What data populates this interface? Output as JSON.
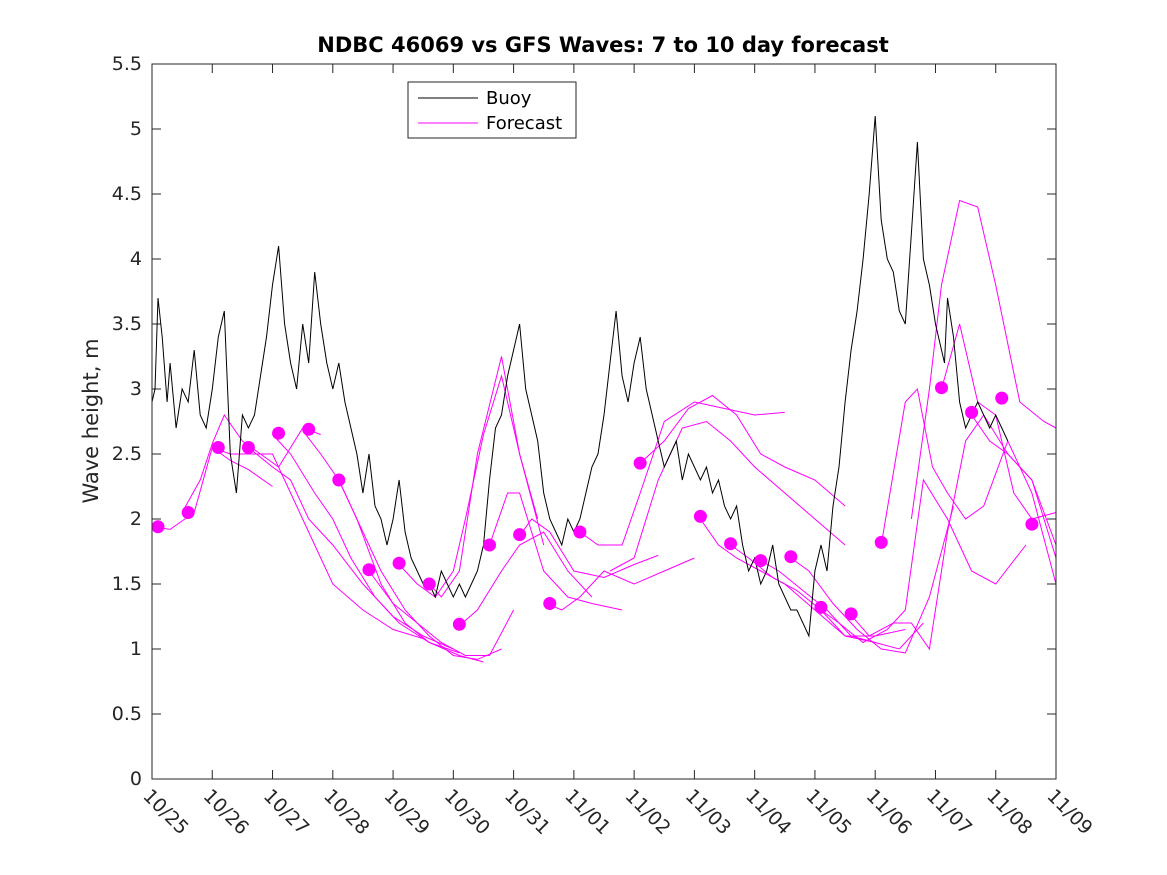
{
  "chart_data": {
    "type": "line",
    "title": "NDBC 46069 vs GFS Waves: 7 to 10 day forecast",
    "xlabel": "",
    "ylabel": "Wave height, m",
    "xlim": [
      0,
      15
    ],
    "ylim": [
      0,
      5.5
    ],
    "yticks": [
      0,
      0.5,
      1,
      1.5,
      2,
      2.5,
      3,
      3.5,
      4,
      4.5,
      5,
      5.5
    ],
    "ytick_labels": [
      "0",
      "0.5",
      "1",
      "1.5",
      "2",
      "2.5",
      "3",
      "3.5",
      "4",
      "4.5",
      "5",
      "5.5"
    ],
    "xtick_labels": [
      "10/25",
      "10/26",
      "10/27",
      "10/28",
      "10/29",
      "10/30",
      "10/31",
      "11/01",
      "11/02",
      "11/03",
      "11/04",
      "11/05",
      "11/06",
      "11/07",
      "11/08",
      "11/09"
    ],
    "x_units": "days since 10/25 00:00",
    "legend": {
      "placement": "top-left",
      "entries": [
        "Buoy",
        "Forecast"
      ]
    },
    "colors": {
      "buoy": "#000000",
      "forecast": "#ff00ff",
      "axis": "#262626"
    },
    "buoy": {
      "name": "Buoy",
      "x": [
        0.0,
        0.05,
        0.1,
        0.17,
        0.25,
        0.3,
        0.4,
        0.5,
        0.6,
        0.7,
        0.8,
        0.9,
        1.0,
        1.1,
        1.2,
        1.3,
        1.4,
        1.5,
        1.6,
        1.7,
        1.8,
        1.9,
        2.0,
        2.1,
        2.2,
        2.3,
        2.4,
        2.5,
        2.6,
        2.7,
        2.8,
        2.9,
        3.0,
        3.1,
        3.2,
        3.3,
        3.4,
        3.5,
        3.6,
        3.7,
        3.8,
        3.9,
        4.0,
        4.1,
        4.2,
        4.3,
        4.4,
        4.5,
        4.6,
        4.7,
        4.8,
        4.9,
        5.0,
        5.1,
        5.2,
        5.3,
        5.4,
        5.5,
        5.6,
        5.7,
        5.8,
        5.9,
        6.0,
        6.1,
        6.2,
        6.3,
        6.4,
        6.5,
        6.6,
        6.7,
        6.8,
        6.9,
        7.0,
        7.1,
        7.2,
        7.3,
        7.4,
        7.5,
        7.6,
        7.7,
        7.8,
        7.9,
        8.0,
        8.1,
        8.2,
        8.3,
        8.4,
        8.5,
        8.6,
        8.7,
        8.8,
        8.9,
        9.0,
        9.1,
        9.2,
        9.3,
        9.4,
        9.5,
        9.6,
        9.7,
        9.8,
        9.9,
        10.0,
        10.1,
        10.2,
        10.3,
        10.4,
        10.5,
        10.6,
        10.7,
        10.8,
        10.9,
        11.0,
        11.1,
        11.2,
        11.3,
        11.4,
        11.5,
        11.6,
        11.7,
        11.8,
        11.9,
        12.0,
        12.1,
        12.2,
        12.3,
        12.4,
        12.5,
        12.6,
        12.7,
        12.8,
        12.9,
        13.0,
        13.1,
        13.15,
        13.2,
        13.3,
        13.4,
        13.5,
        13.6,
        13.7,
        13.8,
        13.9,
        14.0,
        14.1,
        14.2
      ],
      "values": [
        2.9,
        3.0,
        3.7,
        3.4,
        2.9,
        3.2,
        2.7,
        3.0,
        2.9,
        3.3,
        2.8,
        2.7,
        3.0,
        3.4,
        3.6,
        2.5,
        2.2,
        2.8,
        2.7,
        2.8,
        3.1,
        3.4,
        3.8,
        4.1,
        3.5,
        3.2,
        3.0,
        3.5,
        3.2,
        3.9,
        3.5,
        3.2,
        3.0,
        3.2,
        2.9,
        2.7,
        2.5,
        2.2,
        2.5,
        2.1,
        2.0,
        1.8,
        2.0,
        2.3,
        1.9,
        1.7,
        1.6,
        1.5,
        1.5,
        1.4,
        1.6,
        1.5,
        1.4,
        1.5,
        1.4,
        1.5,
        1.6,
        1.8,
        2.3,
        2.7,
        2.8,
        3.1,
        3.3,
        3.5,
        3.0,
        2.8,
        2.6,
        2.2,
        2.0,
        1.9,
        1.8,
        2.0,
        1.9,
        2.0,
        2.2,
        2.4,
        2.5,
        2.8,
        3.2,
        3.6,
        3.1,
        2.9,
        3.2,
        3.4,
        3.0,
        2.8,
        2.6,
        2.4,
        2.5,
        2.6,
        2.3,
        2.5,
        2.4,
        2.3,
        2.4,
        2.2,
        2.3,
        2.1,
        2.0,
        2.1,
        1.8,
        1.6,
        1.7,
        1.5,
        1.6,
        1.8,
        1.5,
        1.4,
        1.3,
        1.3,
        1.2,
        1.1,
        1.6,
        1.8,
        1.6,
        2.1,
        2.4,
        2.9,
        3.3,
        3.6,
        4.0,
        4.5,
        5.1,
        4.3,
        4.0,
        3.9,
        3.6,
        3.5,
        4.2,
        4.9,
        4.0,
        3.8,
        3.5,
        3.3,
        3.2,
        3.7,
        3.4,
        2.9,
        2.7,
        2.8,
        2.9,
        2.8,
        2.7,
        2.8,
        2.7,
        2.6
      ]
    },
    "forecast_runs": [
      {
        "x": [
          0.0,
          0.3,
          0.7,
          1.0,
          1.3,
          1.6,
          2.0
        ],
        "values": [
          1.94,
          1.92,
          2.05,
          2.55,
          2.45,
          2.38,
          2.25
        ]
      },
      {
        "x": [
          0.5,
          0.8,
          1.0,
          1.2,
          1.5,
          1.8,
          2.1,
          2.5,
          2.8
        ],
        "values": [
          2.05,
          2.3,
          2.58,
          2.8,
          2.6,
          2.5,
          2.4,
          2.7,
          2.65
        ]
      },
      {
        "x": [
          1.0,
          1.3,
          1.6,
          2.0,
          2.3,
          2.7,
          3.0,
          3.5,
          4.0,
          4.5
        ],
        "values": [
          2.55,
          2.5,
          2.5,
          2.5,
          2.2,
          1.8,
          1.5,
          1.3,
          1.15,
          1.08
        ]
      },
      {
        "x": [
          1.6,
          2.0,
          2.3,
          2.6,
          3.0,
          3.5,
          4.0,
          4.5,
          5.0
        ],
        "values": [
          2.55,
          2.4,
          2.3,
          2.0,
          1.8,
          1.5,
          1.25,
          1.1,
          1.0
        ]
      },
      {
        "x": [
          2.0,
          2.3,
          2.7,
          3.0,
          3.3,
          3.7,
          4.1,
          4.6,
          5.1
        ],
        "values": [
          2.65,
          2.5,
          2.2,
          2.0,
          1.7,
          1.4,
          1.2,
          1.05,
          0.97
        ]
      },
      {
        "x": [
          2.5,
          2.8,
          3.1,
          3.4,
          3.8,
          4.2,
          4.6,
          5.1,
          5.5
        ],
        "values": [
          2.68,
          2.5,
          2.3,
          2.0,
          1.5,
          1.2,
          1.05,
          0.95,
          0.9
        ]
      },
      {
        "x": [
          3.1,
          3.4,
          3.8,
          4.2,
          4.6,
          5.0,
          5.4,
          5.8
        ],
        "values": [
          2.3,
          2.0,
          1.6,
          1.3,
          1.1,
          0.95,
          0.92,
          1.0
        ]
      },
      {
        "x": [
          3.6,
          4.0,
          4.4,
          4.8,
          5.2,
          5.6,
          6.0
        ],
        "values": [
          1.6,
          1.35,
          1.2,
          1.05,
          0.95,
          0.95,
          1.3
        ]
      },
      {
        "x": [
          4.1,
          4.4,
          4.7,
          5.0,
          5.2,
          5.5,
          5.8,
          6.1,
          6.4
        ],
        "values": [
          1.65,
          1.5,
          1.4,
          1.6,
          2.0,
          2.65,
          3.1,
          2.5,
          2.0
        ]
      },
      {
        "x": [
          4.6,
          4.8,
          5.1,
          5.4,
          5.8,
          6.1,
          6.5
        ],
        "values": [
          1.5,
          1.4,
          1.6,
          2.5,
          3.25,
          2.5,
          1.8
        ]
      },
      {
        "x": [
          5.1,
          5.4,
          5.8,
          6.1,
          6.5,
          6.9,
          7.3
        ],
        "values": [
          1.18,
          1.3,
          1.6,
          1.8,
          1.9,
          1.6,
          1.4
        ]
      },
      {
        "x": [
          5.6,
          5.9,
          6.1,
          6.5,
          6.9,
          7.3,
          7.8
        ],
        "values": [
          1.8,
          2.2,
          2.2,
          1.6,
          1.4,
          1.35,
          1.3
        ]
      },
      {
        "x": [
          6.1,
          6.3,
          6.6,
          7.0,
          7.5,
          8.0,
          8.4
        ],
        "values": [
          1.87,
          2.0,
          1.9,
          1.6,
          1.55,
          1.65,
          1.72
        ]
      },
      {
        "x": [
          6.6,
          6.8,
          7.1,
          7.5,
          8.0,
          8.5,
          9.0
        ],
        "values": [
          1.34,
          1.3,
          1.4,
          1.6,
          1.5,
          1.6,
          1.7
        ]
      },
      {
        "x": [
          7.1,
          7.4,
          7.8,
          8.1,
          8.5,
          9.0,
          9.5,
          10.0,
          10.5
        ],
        "values": [
          1.9,
          1.8,
          1.8,
          2.2,
          2.75,
          2.9,
          2.85,
          2.8,
          2.82
        ]
      },
      {
        "x": [
          7.6,
          8.0,
          8.4,
          8.8,
          9.2,
          9.6,
          10.0,
          10.5,
          11.0,
          11.5
        ],
        "values": [
          1.6,
          1.7,
          2.3,
          2.7,
          2.75,
          2.6,
          2.4,
          2.2,
          2.0,
          1.8
        ]
      },
      {
        "x": [
          8.1,
          8.5,
          8.9,
          9.3,
          9.7,
          10.1,
          10.5,
          11.0,
          11.5
        ],
        "values": [
          2.43,
          2.6,
          2.85,
          2.95,
          2.8,
          2.5,
          2.4,
          2.3,
          2.1
        ]
      },
      {
        "x": [
          9.1,
          9.4,
          9.7,
          10.1,
          10.5,
          11.0,
          11.5,
          12.0
        ],
        "values": [
          2.0,
          1.8,
          1.7,
          1.6,
          1.5,
          1.3,
          1.1,
          1.05
        ]
      },
      {
        "x": [
          9.6,
          9.9,
          10.3,
          10.7,
          11.1,
          11.5,
          12.0,
          12.5
        ],
        "values": [
          1.8,
          1.7,
          1.55,
          1.45,
          1.3,
          1.1,
          1.1,
          1.15
        ]
      },
      {
        "x": [
          10.1,
          10.4,
          10.8,
          11.2,
          11.6,
          12.0,
          12.4,
          12.8
        ],
        "values": [
          1.68,
          1.6,
          1.45,
          1.3,
          1.1,
          1.05,
          1.0,
          1.2
        ]
      },
      {
        "x": [
          10.6,
          10.9,
          11.3,
          11.7,
          12.1,
          12.5,
          12.9,
          13.3
        ],
        "values": [
          1.7,
          1.6,
          1.35,
          1.15,
          1.0,
          0.97,
          1.4,
          2.1
        ]
      },
      {
        "x": [
          11.1,
          11.4,
          11.8,
          12.2,
          12.5,
          12.8,
          13.2,
          13.6,
          14.0,
          14.5
        ],
        "values": [
          1.3,
          1.2,
          1.05,
          1.15,
          1.3,
          2.3,
          2.0,
          1.6,
          1.5,
          1.8
        ]
      },
      {
        "x": [
          11.6,
          11.9,
          12.3,
          12.6,
          12.9,
          13.2,
          13.5,
          13.8,
          14.2,
          14.6,
          15.0
        ],
        "values": [
          1.26,
          1.1,
          1.2,
          1.2,
          1.0,
          1.9,
          2.6,
          2.8,
          2.5,
          2.3,
          1.7
        ]
      },
      {
        "x": [
          12.1,
          12.5,
          12.7,
          12.95,
          13.2,
          13.5,
          13.8,
          14.2,
          14.6,
          15.0
        ],
        "values": [
          1.8,
          2.9,
          3.0,
          2.4,
          2.2,
          2.0,
          2.1,
          2.6,
          2.2,
          1.5
        ]
      },
      {
        "x": [
          12.6,
          12.9,
          13.1,
          13.4,
          13.7,
          14.0,
          14.4,
          14.8,
          15.0
        ],
        "values": [
          2.0,
          3.0,
          3.8,
          4.45,
          4.4,
          3.8,
          2.9,
          2.75,
          2.7
        ]
      },
      {
        "x": [
          13.1,
          13.4,
          13.7,
          14.0,
          14.3,
          14.6,
          15.0
        ],
        "values": [
          3.0,
          3.5,
          2.9,
          2.8,
          2.2,
          2.0,
          2.05
        ]
      },
      {
        "x": [
          13.6,
          13.9,
          14.2,
          14.6,
          15.0
        ],
        "values": [
          2.8,
          2.6,
          2.5,
          2.3,
          1.8
        ]
      }
    ],
    "forecast_markers": {
      "x": [
        0.1,
        0.6,
        1.1,
        1.6,
        2.1,
        2.6,
        3.1,
        3.6,
        4.1,
        4.6,
        5.1,
        5.6,
        6.1,
        6.6,
        7.1,
        8.1,
        9.1,
        9.6,
        10.1,
        10.6,
        11.1,
        11.6,
        12.1,
        13.1,
        13.6,
        14.1,
        14.6
      ],
      "values": [
        1.94,
        2.05,
        2.55,
        2.55,
        2.66,
        2.69,
        2.3,
        1.61,
        1.66,
        1.5,
        1.19,
        1.8,
        1.88,
        1.35,
        1.9,
        2.43,
        2.02,
        1.81,
        1.68,
        1.71,
        1.32,
        1.27,
        1.82,
        3.01,
        2.82,
        2.93,
        1.96
      ]
    }
  }
}
